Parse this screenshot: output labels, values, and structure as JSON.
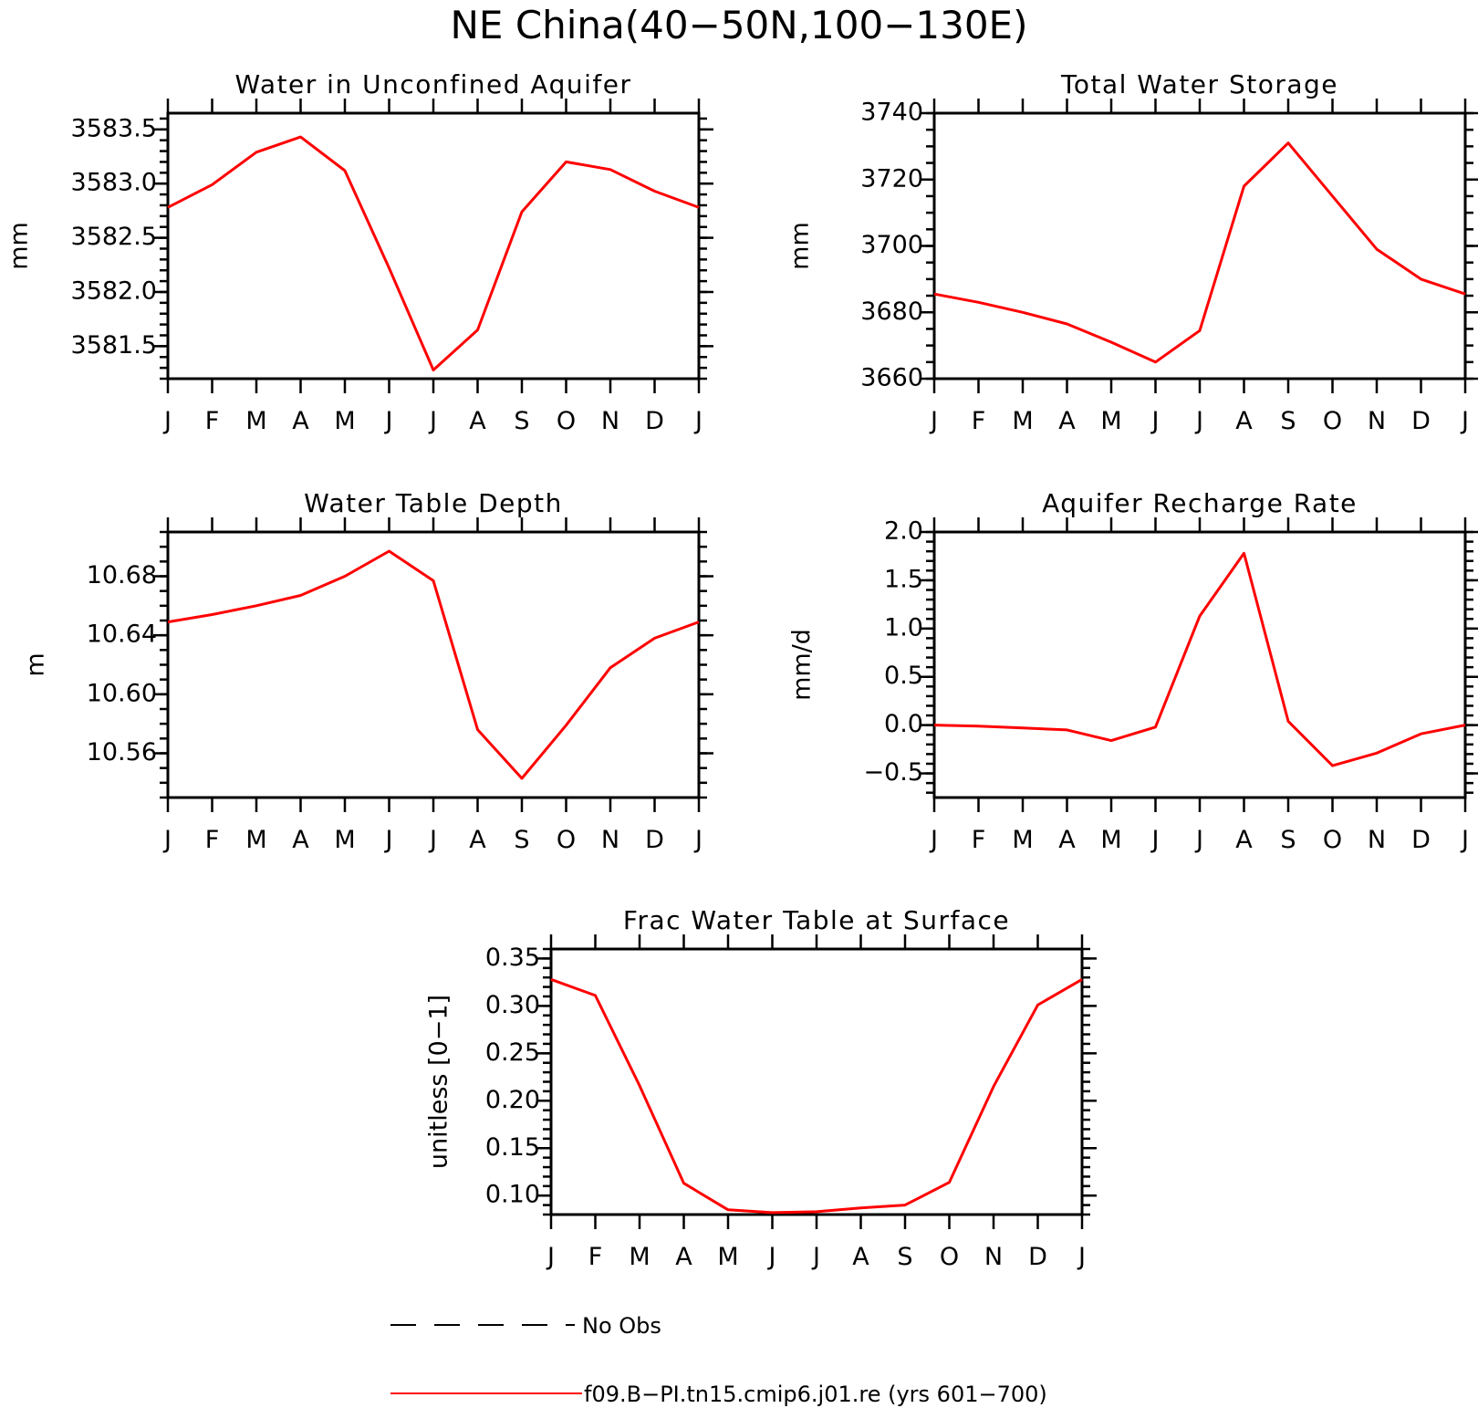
{
  "title": "NE China(40−50N,100−130E)",
  "months": [
    "J",
    "F",
    "M",
    "A",
    "M",
    "J",
    "J",
    "A",
    "S",
    "O",
    "N",
    "D",
    "J"
  ],
  "series_color": "#ff0000",
  "chart_data": [
    {
      "type": "line",
      "title": "Water in Unconfined Aquifer",
      "ylabel": "mm",
      "ylim": [
        3581.2,
        3583.65
      ],
      "yticks": [
        3581.5,
        3582.0,
        3582.5,
        3583.0,
        3583.5
      ],
      "ytick_labels": [
        "3581.5",
        "3582.0",
        "3582.5",
        "3583.0",
        "3583.5"
      ],
      "yminor": 0.1,
      "grid": false,
      "values": [
        3582.78,
        3582.99,
        3583.29,
        3583.43,
        3583.12,
        3582.22,
        3581.28,
        3581.65,
        3582.74,
        3583.2,
        3583.13,
        3582.93,
        3582.78
      ]
    },
    {
      "type": "line",
      "title": "Total Water Storage",
      "ylabel": "mm",
      "ylim": [
        3660,
        3740
      ],
      "yticks": [
        3660,
        3680,
        3700,
        3720,
        3740
      ],
      "ytick_labels": [
        "3660",
        "3680",
        "3700",
        "3720",
        "3740"
      ],
      "yminor": 5,
      "grid": false,
      "values": [
        3685.5,
        3683,
        3680,
        3676.5,
        3671,
        3665,
        3674.5,
        3718,
        3731,
        3715,
        3699,
        3690,
        3685.5
      ]
    },
    {
      "type": "line",
      "title": "Water Table Depth",
      "ylabel": "m",
      "ylim": [
        10.53,
        10.71
      ],
      "yticks": [
        10.56,
        10.6,
        10.64,
        10.68
      ],
      "ytick_labels": [
        "10.56",
        "10.60",
        "10.64",
        "10.68"
      ],
      "yminor": 0.01,
      "grid": false,
      "values": [
        10.649,
        10.654,
        10.66,
        10.667,
        10.68,
        10.697,
        10.677,
        10.576,
        10.543,
        10.579,
        10.618,
        10.638,
        10.649
      ]
    },
    {
      "type": "line",
      "title": "Aquifer Recharge Rate",
      "ylabel": "mm/d",
      "ylim": [
        -0.75,
        2.0
      ],
      "yticks": [
        -0.5,
        0.0,
        0.5,
        1.0,
        1.5,
        2.0
      ],
      "ytick_labels": [
        "−0.5",
        "0.0",
        "0.5",
        "1.0",
        "1.5",
        "2.0"
      ],
      "yminor": 0.1,
      "grid": false,
      "values": [
        0.0,
        -0.01,
        -0.03,
        -0.05,
        -0.16,
        -0.02,
        1.13,
        1.78,
        0.04,
        -0.42,
        -0.29,
        -0.09,
        0.0
      ]
    },
    {
      "type": "line",
      "title": "Frac Water Table at Surface",
      "ylabel": "unitless [0−1]",
      "ylim": [
        0.08,
        0.36
      ],
      "yticks": [
        0.1,
        0.15,
        0.2,
        0.25,
        0.3,
        0.35
      ],
      "ytick_labels": [
        "0.10",
        "0.15",
        "0.20",
        "0.25",
        "0.30",
        "0.35"
      ],
      "yminor": 0.01,
      "grid": false,
      "values": [
        0.328,
        0.311,
        0.216,
        0.113,
        0.085,
        0.082,
        0.083,
        0.087,
        0.09,
        0.114,
        0.215,
        0.301,
        0.328
      ]
    }
  ],
  "legend": {
    "placement": "bottom",
    "entries": [
      {
        "label": "No Obs",
        "style": "dashed",
        "color": "#000000"
      },
      {
        "label": "f09.B−PI.tn15.cmip6.j01.re (yrs 601−700)",
        "style": "solid",
        "color": "#ff0000"
      }
    ]
  }
}
